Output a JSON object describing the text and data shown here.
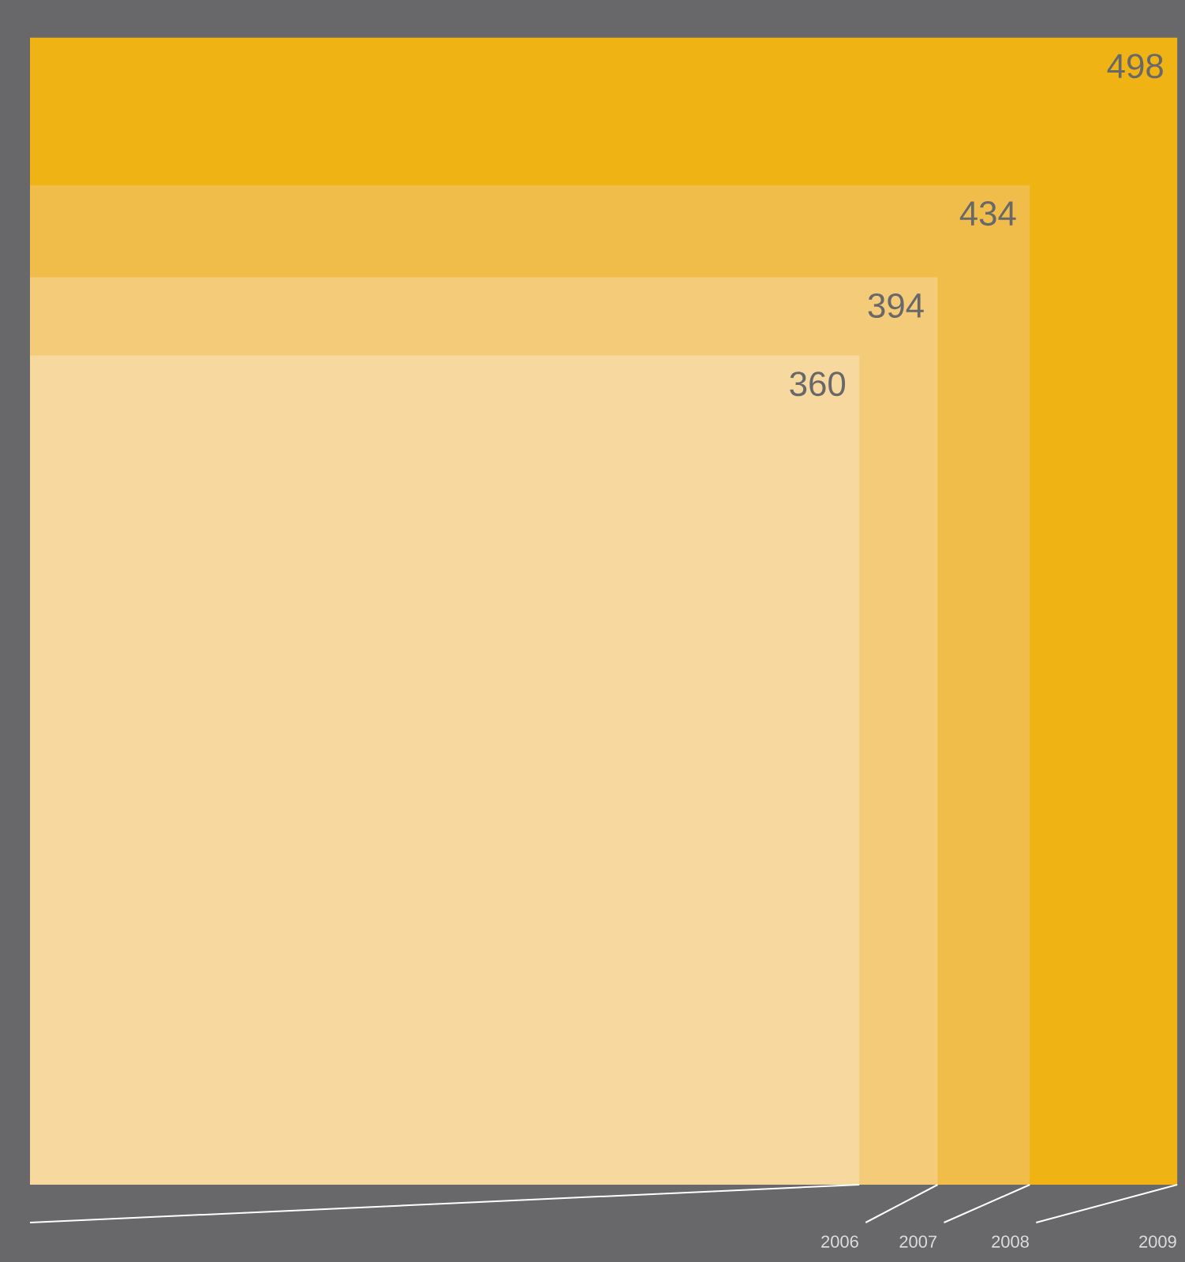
{
  "chart_data": {
    "type": "other",
    "categories": [
      "2006",
      "2007",
      "2008",
      "2009"
    ],
    "values": [
      360,
      394,
      434,
      498
    ],
    "colors": [
      "#f7d89e",
      "#f4cb78",
      "#f0bd4a",
      "#efb314"
    ],
    "data_labels": true
  }
}
